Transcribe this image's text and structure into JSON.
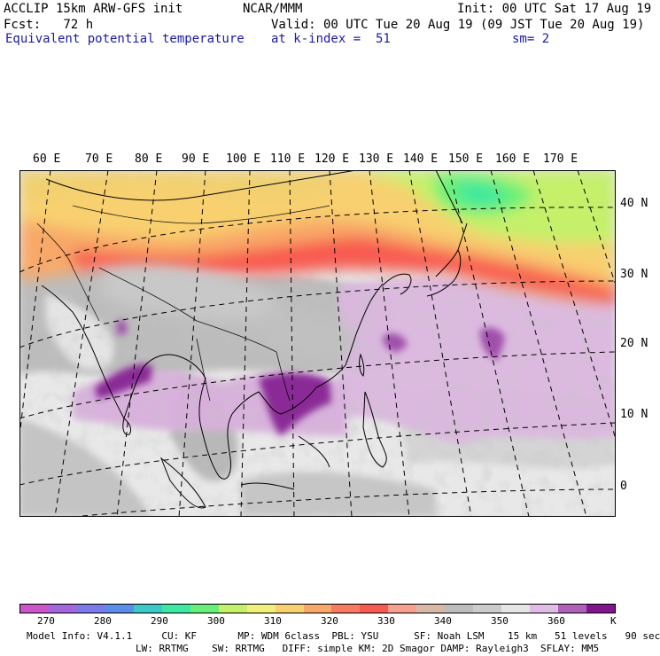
{
  "header": {
    "line1_left": "ACCLIP 15km ARW-GFS init",
    "line1_center": "NCAR/MMM",
    "line1_right": "Init: 00 UTC Sat 17 Aug 19",
    "line2_left": "Fcst:   72 h",
    "line2_right": "Valid: 00 UTC Tue 20 Aug 19 (09 JST Tue 20 Aug 19)",
    "line3_left": "Equivalent potential temperature",
    "line3_center": "at k-index =  51",
    "line3_right": "sm= 2"
  },
  "longitude_labels": [
    "60 E",
    "70 E",
    "80 E",
    "90 E",
    "100 E",
    "110 E",
    "120 E",
    "130 E",
    "140 E",
    "150 E",
    "160 E",
    "170 E"
  ],
  "latitude_labels": [
    "40 N",
    "30 N",
    "20 N",
    "10 N",
    "0"
  ],
  "colorbar": {
    "colors": [
      "#cc55cc",
      "#a266dd",
      "#7a7ae8",
      "#5a8ee8",
      "#3cc8c8",
      "#3ee8a0",
      "#66f07a",
      "#c4f06a",
      "#f0f07a",
      "#f8d070",
      "#f8a868",
      "#f87a60",
      "#f85a50",
      "#f8a090",
      "#d8b8a8",
      "#bdbdbd",
      "#cccccc",
      "#e6e6e6",
      "#e0bde6",
      "#b060b8",
      "#80158c"
    ],
    "tick_labels": [
      "270",
      "280",
      "290",
      "300",
      "310",
      "320",
      "330",
      "340",
      "350",
      "360"
    ],
    "unit": "K"
  },
  "footer": {
    "line1": "Model Info: V4.1.1     CU: KF       MP: WDM 6class  PBL: YSU      SF: Noah LSM    15 km   51 levels   90 sec",
    "line2": "LW: RRTMG    SW: RRTMG   DIFF: simple KM: 2D Smagor DAMP: Rayleigh3  SFLAY: MM5"
  }
}
